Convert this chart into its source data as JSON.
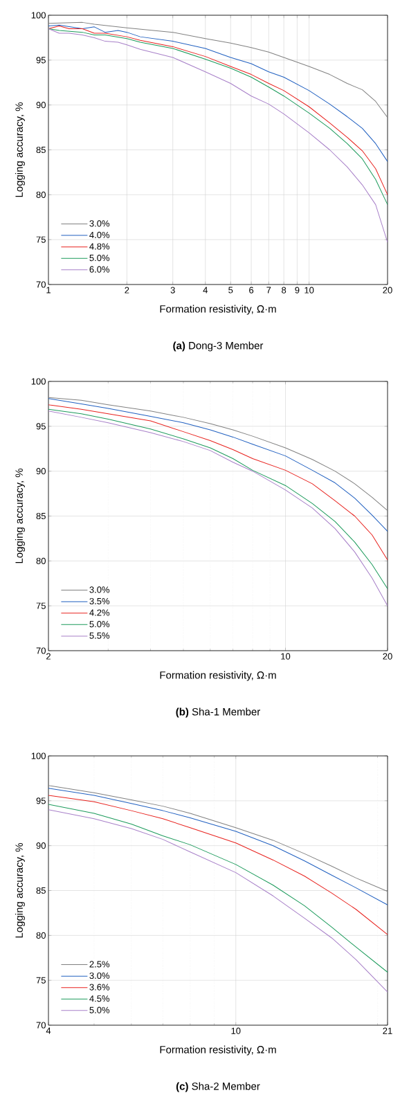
{
  "chart_data": [
    {
      "type": "line",
      "title": "**(a)** Dong-3 Member",
      "xlabel": "Formation resistivity, Ω·m",
      "ylabel": "Logging accuracy, %",
      "log": "x",
      "grid": true,
      "legend": "bottom left",
      "marker": "none",
      "line_style": "solid",
      "xlim": [
        1,
        20
      ],
      "xticks": [
        1,
        2,
        3,
        4,
        5,
        6,
        7,
        8,
        9,
        10,
        20
      ],
      "ylim": [
        70,
        100
      ],
      "yticks": [
        70,
        75,
        80,
        85,
        90,
        95,
        100
      ],
      "series": [
        {
          "name": "3.0%",
          "color": "#808080",
          "x": [
            1,
            1.35,
            1.5,
            2,
            3,
            4,
            5,
            6,
            7,
            8,
            10,
            12,
            14,
            16,
            18,
            20
          ],
          "values": [
            99.1,
            99.2,
            99.0,
            98.6,
            98.1,
            97.4,
            96.9,
            96.4,
            95.9,
            95.3,
            94.3,
            93.4,
            92.4,
            91.7,
            90.4,
            88.6
          ]
        },
        {
          "name": "4.0%",
          "color": "#1f5fc0",
          "x": [
            1,
            1.1,
            1.35,
            1.5,
            1.65,
            1.85,
            2,
            2.25,
            3,
            4,
            5,
            6,
            7,
            8,
            10,
            12,
            14,
            16,
            18,
            20
          ],
          "values": [
            98.8,
            98.9,
            98.5,
            98.7,
            98.1,
            98.3,
            98.1,
            97.6,
            97.1,
            96.3,
            95.3,
            94.6,
            93.7,
            93.1,
            91.6,
            90.1,
            88.7,
            87.4,
            85.7,
            83.7
          ]
        },
        {
          "name": "4.8%",
          "color": "#e8201c",
          "x": [
            1,
            1.1,
            1.2,
            1.35,
            1.5,
            1.65,
            2,
            2.25,
            3,
            4,
            5,
            6,
            7,
            8,
            10,
            12,
            14,
            16,
            18,
            20
          ],
          "values": [
            98.5,
            98.8,
            98.5,
            98.5,
            98.0,
            98.0,
            97.6,
            97.2,
            96.5,
            95.4,
            94.3,
            93.4,
            92.4,
            91.6,
            89.8,
            88.0,
            86.4,
            84.9,
            82.9,
            80.0
          ]
        },
        {
          "name": "5.0%",
          "color": "#1a9a5a",
          "x": [
            1,
            1.1,
            1.35,
            1.5,
            1.65,
            2,
            2.25,
            3,
            4,
            5,
            6,
            7,
            8,
            10,
            12,
            14,
            16,
            18,
            20
          ],
          "values": [
            98.5,
            98.3,
            98.1,
            97.8,
            97.8,
            97.4,
            97.0,
            96.3,
            95.1,
            94.1,
            93.1,
            92.0,
            91.0,
            89.1,
            87.4,
            85.7,
            84.0,
            81.7,
            78.9
          ]
        },
        {
          "name": "6.0%",
          "color": "#a77fc8",
          "x": [
            1,
            1.1,
            1.2,
            1.35,
            1.5,
            1.65,
            1.85,
            2,
            2.25,
            3,
            4,
            5,
            6,
            7,
            8,
            10,
            12,
            14,
            16,
            18,
            20
          ],
          "values": [
            98.5,
            98.0,
            98.0,
            97.8,
            97.5,
            97.1,
            97.0,
            96.7,
            96.2,
            95.3,
            93.7,
            92.4,
            91.0,
            90.1,
            89.0,
            86.9,
            85.0,
            83.1,
            81.1,
            78.9,
            74.7
          ]
        }
      ]
    },
    {
      "type": "line",
      "title": "**(b)** Sha-1 Member",
      "xlabel": "Formation resistivity, Ω·m",
      "ylabel": "Logging accuracy, %",
      "log": "x",
      "grid": true,
      "legend": "bottom left",
      "marker": "none",
      "line_style": "solid",
      "xlim": [
        2,
        20
      ],
      "xticks": [
        2,
        10,
        20
      ],
      "ylim": [
        70,
        100
      ],
      "yticks": [
        70,
        75,
        80,
        85,
        90,
        95,
        100
      ],
      "x": [
        2,
        2.5,
        3,
        4,
        5,
        6,
        7,
        8,
        10,
        12,
        14,
        16,
        18,
        20
      ],
      "series": [
        {
          "name": "3.0%",
          "color": "#808080",
          "values": [
            98.2,
            97.9,
            97.4,
            96.7,
            96.0,
            95.3,
            94.6,
            93.9,
            92.6,
            91.3,
            90.0,
            88.6,
            87.1,
            85.6
          ]
        },
        {
          "name": "3.5%",
          "color": "#1f5fc0",
          "values": [
            98.1,
            97.5,
            97.0,
            96.1,
            95.4,
            94.6,
            93.8,
            93.0,
            91.7,
            90.1,
            88.7,
            87.0,
            85.1,
            83.3
          ]
        },
        {
          "name": "4.2%",
          "color": "#e8201c",
          "values": [
            97.4,
            96.9,
            96.4,
            95.6,
            94.4,
            93.4,
            92.4,
            91.4,
            90.1,
            88.6,
            86.7,
            85.0,
            82.9,
            80.1
          ]
        },
        {
          "name": "5.0%",
          "color": "#1a9a5a",
          "values": [
            96.9,
            96.4,
            95.8,
            94.7,
            93.6,
            92.6,
            91.4,
            90.1,
            88.4,
            86.4,
            84.4,
            82.1,
            79.6,
            76.9
          ]
        },
        {
          "name": "5.5%",
          "color": "#a77fc8",
          "values": [
            96.7,
            96.0,
            95.4,
            94.3,
            93.3,
            92.3,
            91.0,
            90.0,
            87.9,
            85.9,
            83.6,
            81.0,
            78.1,
            75.0
          ]
        }
      ]
    },
    {
      "type": "line",
      "title": "**(c)** Sha-2 Member",
      "xlabel": "Formation resistivity, Ω·m",
      "ylabel": "Logging accuracy, %",
      "log": "x",
      "grid": true,
      "legend": "bottom left",
      "marker": "none",
      "line_style": "solid",
      "xlim": [
        4,
        21
      ],
      "xticks": [
        4,
        10,
        21
      ],
      "ylim": [
        70,
        100
      ],
      "yticks": [
        70,
        75,
        80,
        85,
        90,
        95,
        100
      ],
      "x": [
        4,
        5,
        6,
        7,
        8,
        10,
        12,
        14,
        16,
        18,
        21
      ],
      "series": [
        {
          "name": "2.5%",
          "color": "#808080",
          "values": [
            96.7,
            95.9,
            95.1,
            94.4,
            93.6,
            92.0,
            90.6,
            89.1,
            87.7,
            86.4,
            84.9
          ]
        },
        {
          "name": "3.0%",
          "color": "#1f5fc0",
          "values": [
            96.4,
            95.6,
            94.7,
            93.9,
            93.1,
            91.6,
            90.0,
            88.3,
            86.7,
            85.3,
            83.4
          ]
        },
        {
          "name": "3.6%",
          "color": "#e8201c",
          "values": [
            95.6,
            94.9,
            93.9,
            93.0,
            92.0,
            90.3,
            88.4,
            86.6,
            84.7,
            82.9,
            80.1
          ]
        },
        {
          "name": "4.5%",
          "color": "#1a9a5a",
          "values": [
            94.6,
            93.6,
            92.4,
            91.1,
            90.1,
            87.9,
            85.6,
            83.3,
            80.9,
            78.7,
            75.9
          ]
        },
        {
          "name": "5.0%",
          "color": "#a77fc8",
          "values": [
            94.0,
            93.0,
            91.9,
            90.7,
            89.3,
            87.0,
            84.4,
            81.9,
            79.7,
            77.3,
            73.7
          ]
        }
      ]
    }
  ]
}
